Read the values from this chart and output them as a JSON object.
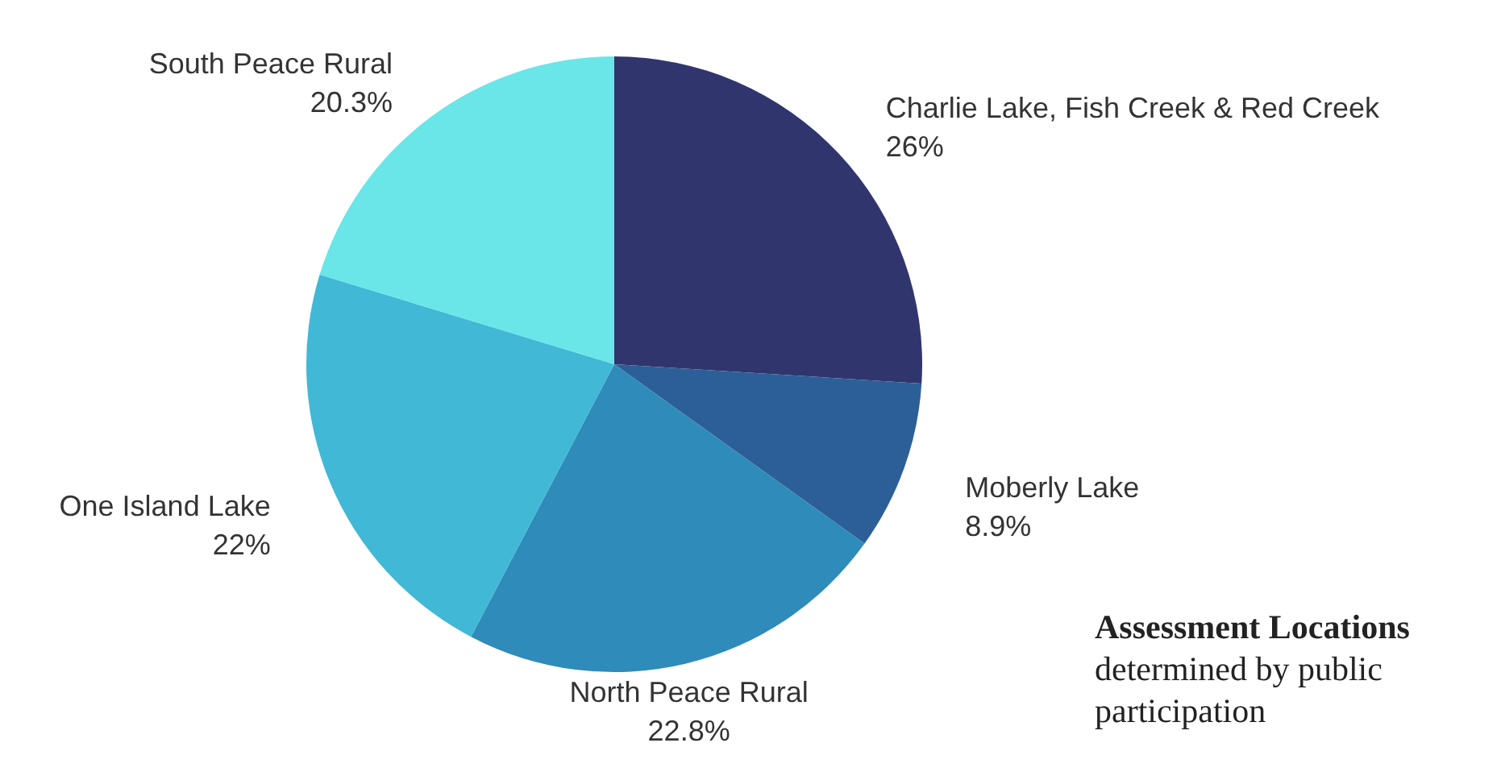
{
  "chart_data": {
    "type": "pie",
    "title": "Assessment Locations",
    "subtitle": "determined by public participation",
    "categories": [
      "Charlie Lake, Fish Creek & Red Creek",
      "Moberly Lake",
      "North Peace Rural",
      "One Island Lake",
      "South Peace Rural"
    ],
    "values": [
      26,
      8.9,
      22.8,
      22,
      20.3
    ],
    "value_labels": [
      "26%",
      "8.9%",
      "22.8%",
      "22%",
      "20.3%"
    ],
    "colors": [
      "#31356e",
      "#2c5f97",
      "#2e8bba",
      "#41b8d5",
      "#6ae5e8"
    ]
  }
}
